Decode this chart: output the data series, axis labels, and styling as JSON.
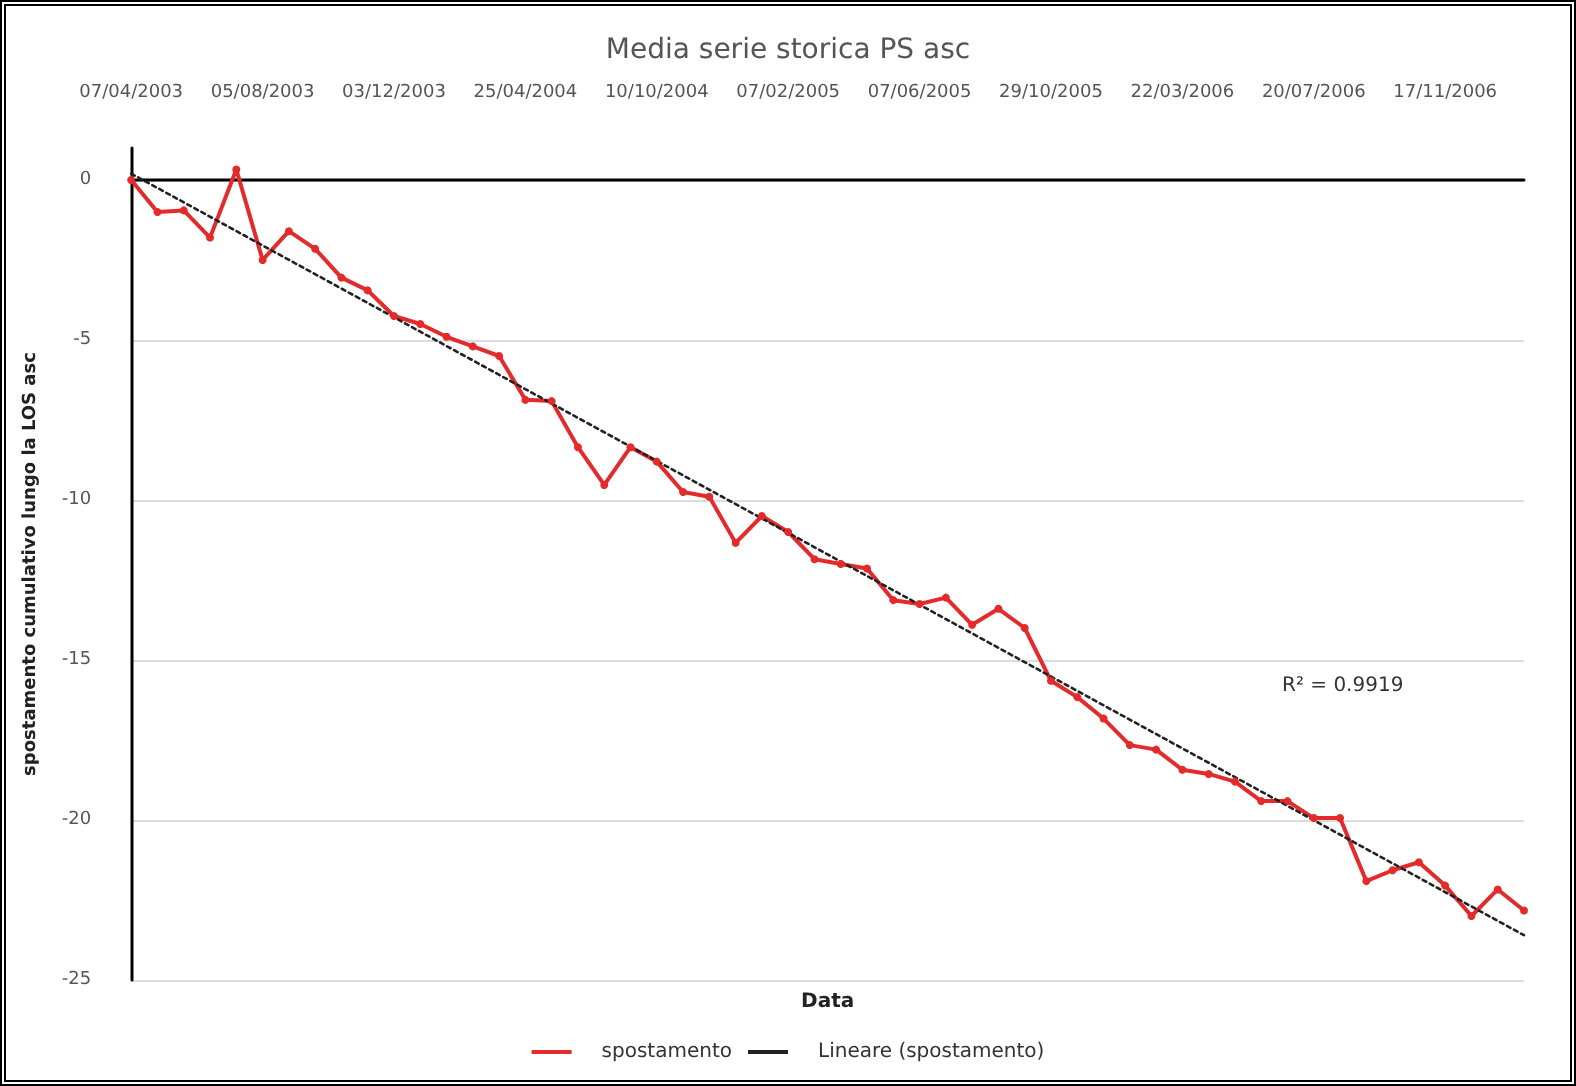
{
  "chart_data": {
    "type": "line",
    "title": "Media serie storica PS asc",
    "xlabel": "Data",
    "ylabel": "spostamento cumulativo lungo la LOS asc",
    "categories": [
      "07/04/2003",
      null,
      null,
      null,
      null,
      "05/08/2003",
      null,
      null,
      null,
      null,
      "03/12/2003",
      null,
      null,
      null,
      null,
      "25/04/2004",
      null,
      null,
      null,
      null,
      "10/10/2004",
      null,
      null,
      null,
      null,
      "07/02/2005",
      null,
      null,
      null,
      null,
      "07/06/2005",
      null,
      null,
      null,
      null,
      "29/10/2005",
      null,
      null,
      null,
      null,
      "22/03/2006",
      null,
      null,
      null,
      null,
      "20/07/2006",
      null,
      null,
      null,
      null,
      "17/11/2006",
      null,
      null,
      null
    ],
    "series": [
      {
        "name": "spostamento",
        "color": "#e32b2b",
        "marker": "circle",
        "line_style": "solid",
        "values": [
          0,
          -1.0,
          -0.95,
          -1.8,
          0.33,
          -2.5,
          -1.6,
          -2.15,
          -3.05,
          -3.45,
          -4.25,
          -4.5,
          -4.9,
          -5.2,
          -5.5,
          -6.87,
          -6.91,
          -8.35,
          -9.53,
          -8.35,
          -8.8,
          -9.75,
          -9.9,
          -11.34,
          -10.5,
          -11.0,
          -11.85,
          -12.0,
          -12.14,
          -13.13,
          -13.25,
          -13.05,
          -13.9,
          -13.4,
          -14.0,
          -15.65,
          -16.16,
          -16.83,
          -17.66,
          -17.8,
          -18.43,
          -18.56,
          -18.8,
          -19.41,
          -19.41,
          -19.94,
          -19.94,
          -21.91,
          -21.57,
          -21.32,
          -22.05,
          -23.0,
          -22.17,
          -22.83
        ]
      },
      {
        "name": "Lineare (spostamento)",
        "color": "#222222",
        "marker": "none",
        "line_style": "dotted",
        "values": [
          0.2,
          null,
          null,
          null,
          null,
          null,
          null,
          null,
          null,
          null,
          null,
          null,
          null,
          null,
          null,
          null,
          null,
          null,
          null,
          null,
          null,
          null,
          null,
          null,
          null,
          null,
          null,
          null,
          null,
          null,
          null,
          null,
          null,
          null,
          null,
          null,
          null,
          null,
          null,
          null,
          null,
          null,
          null,
          null,
          null,
          null,
          null,
          null,
          null,
          null,
          null,
          null,
          null,
          -23.6
        ]
      }
    ],
    "annotations": [
      "R² = 0.9919"
    ],
    "ylim": [
      -25,
      1
    ],
    "yticks": [
      0,
      -5,
      -10,
      -15,
      -20,
      -25
    ],
    "grid": "y",
    "legend": "bottom"
  }
}
